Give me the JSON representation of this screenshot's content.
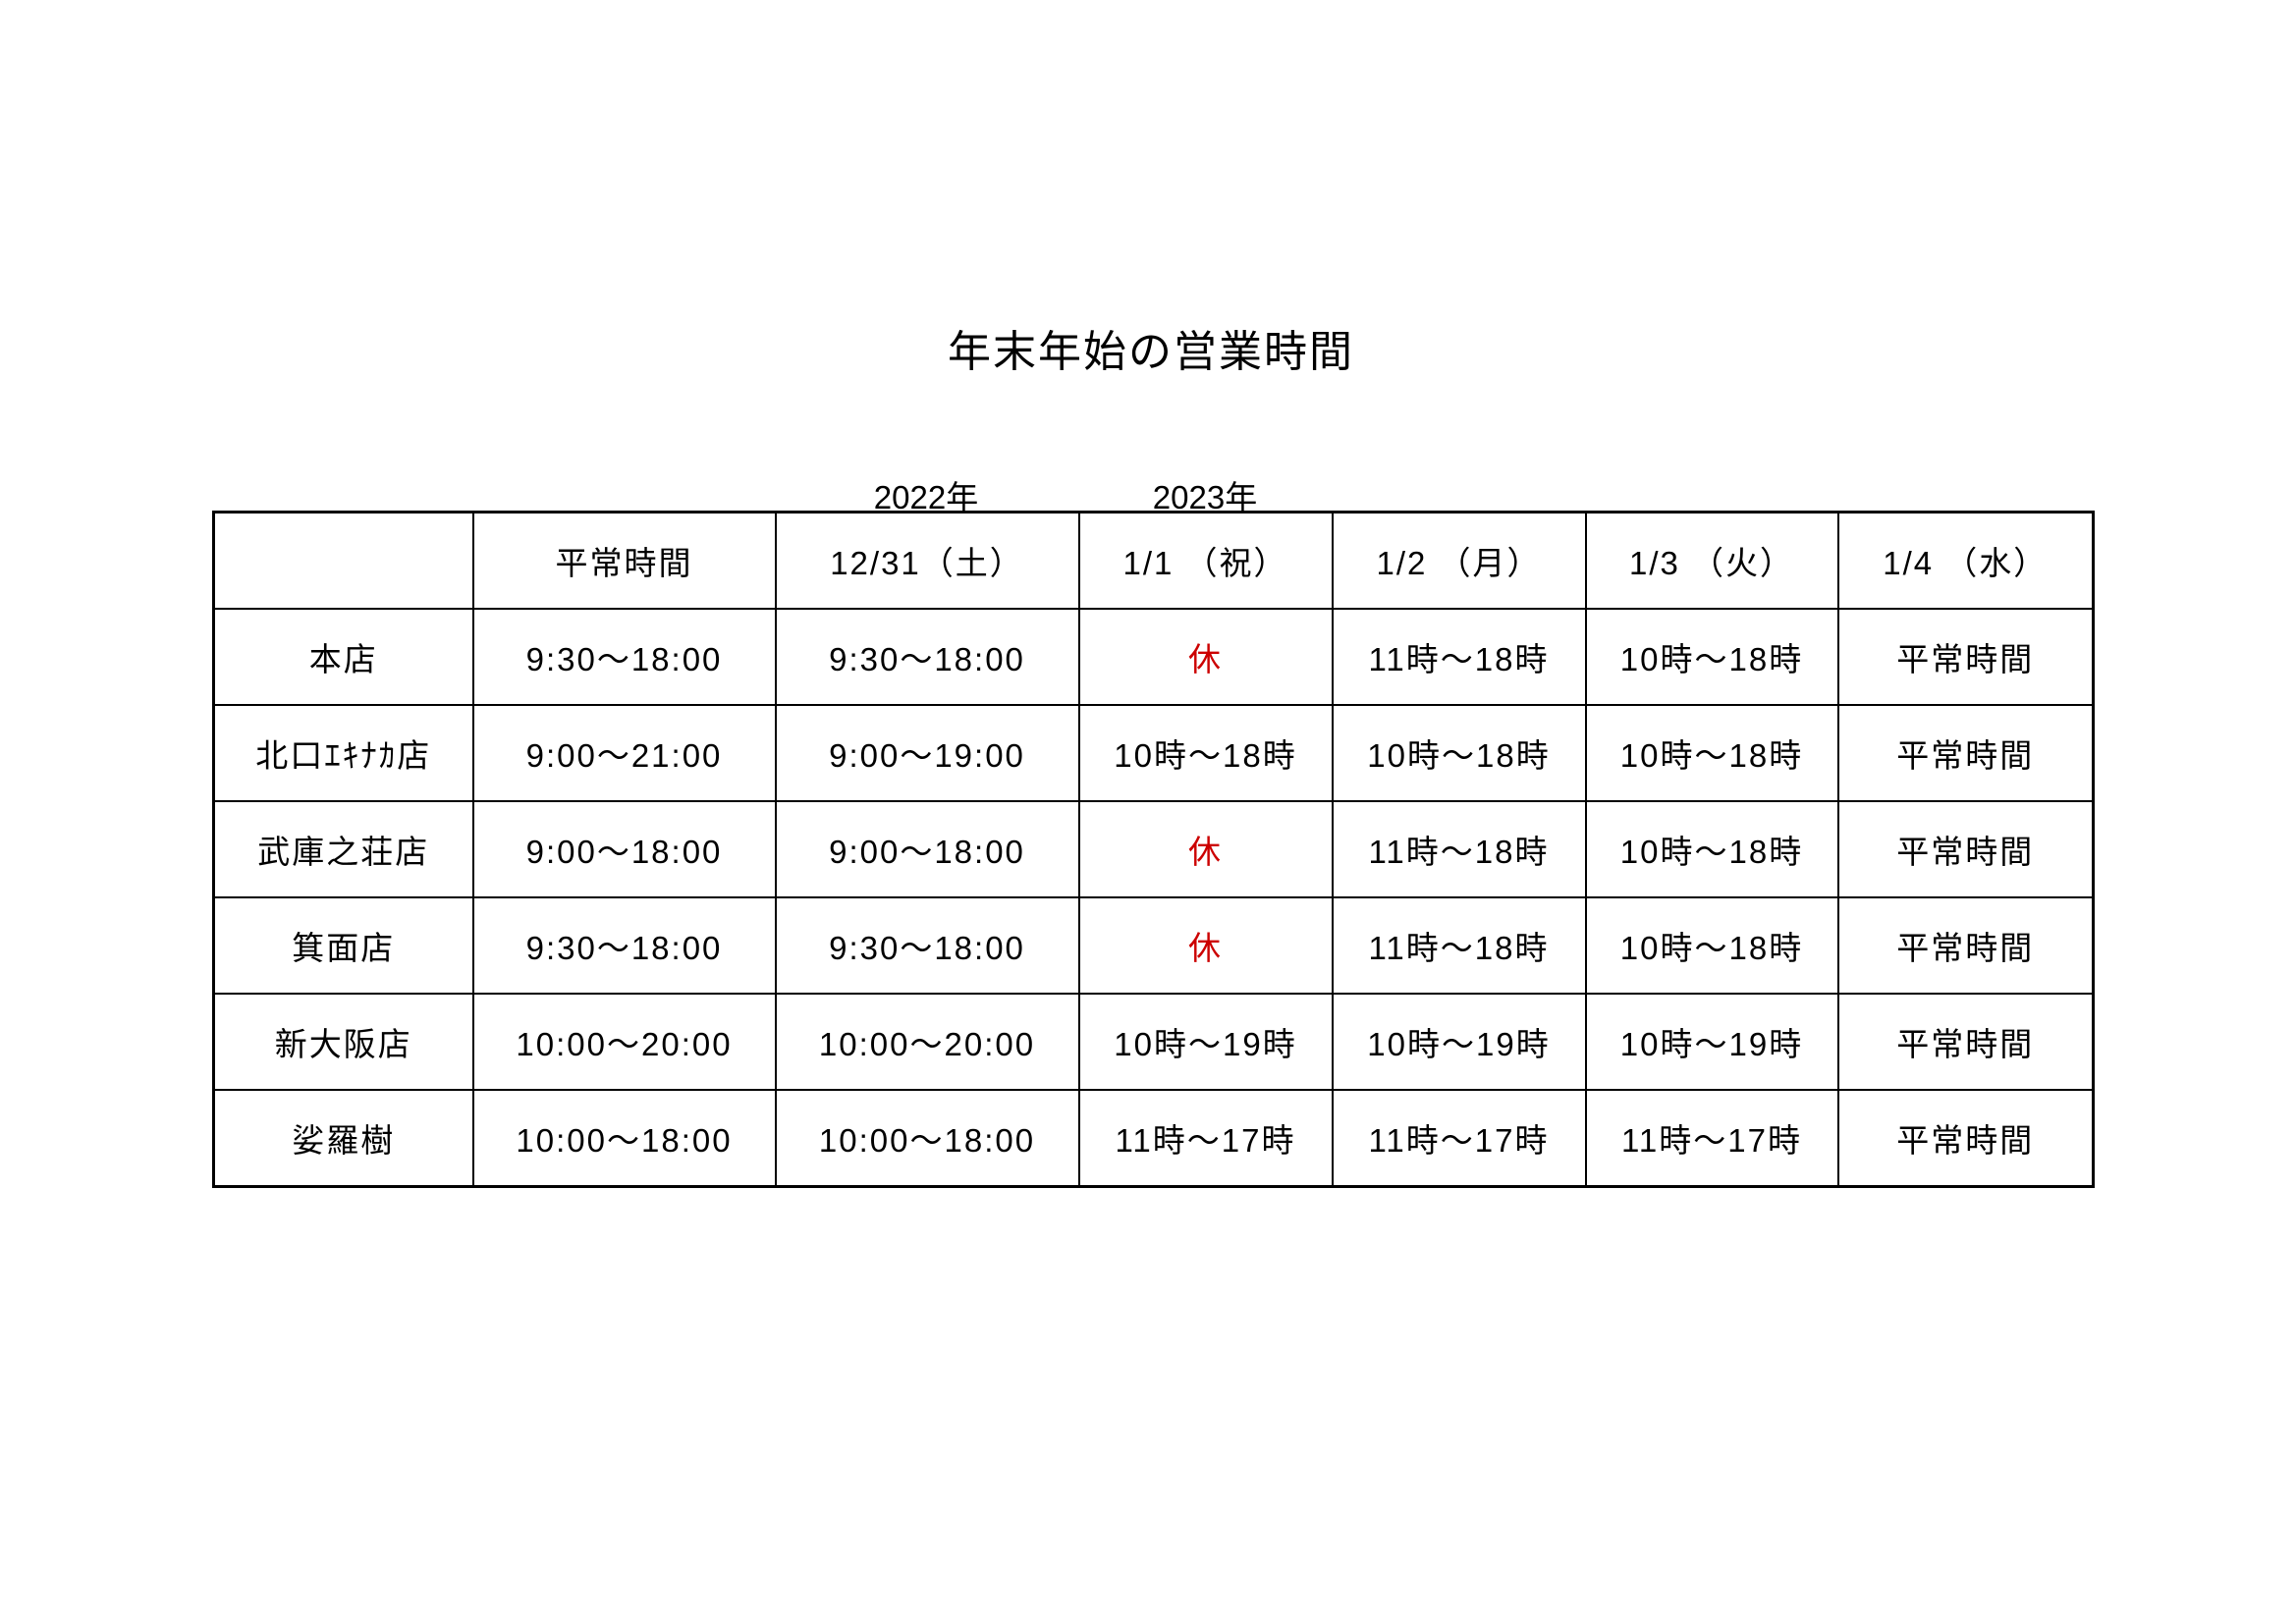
{
  "title": "年末年始の営業時間",
  "year_labels": [
    "2022年",
    "2023年"
  ],
  "colors": {
    "closed": "#cc0000",
    "text": "#000000"
  },
  "table": {
    "headers": [
      "",
      "平常時間",
      "12/31（土）",
      "1/1 （祝）",
      "1/2 （月）",
      "1/3 （火）",
      "1/4 （水）"
    ],
    "rows": [
      [
        "本店",
        "9:30〜18:00",
        "9:30〜18:00",
        "休",
        "11時〜18時",
        "10時〜18時",
        "平常時間"
      ],
      [
        "北口ｴｷﾅｶ店",
        "9:00〜21:00",
        "9:00〜19:00",
        "10時〜18時",
        "10時〜18時",
        "10時〜18時",
        "平常時間"
      ],
      [
        "武庫之荘店",
        "9:00〜18:00",
        "9:00〜18:00",
        "休",
        "11時〜18時",
        "10時〜18時",
        "平常時間"
      ],
      [
        "箕面店",
        "9:30〜18:00",
        "9:30〜18:00",
        "休",
        "11時〜18時",
        "10時〜18時",
        "平常時間"
      ],
      [
        "新大阪店",
        "10:00〜20:00",
        "10:00〜20:00",
        "10時〜19時",
        "10時〜19時",
        "10時〜19時",
        "平常時間"
      ],
      [
        "娑羅樹",
        "10:00〜18:00",
        "10:00〜18:00",
        "11時〜17時",
        "11時〜17時",
        "11時〜17時",
        "平常時間"
      ]
    ]
  }
}
